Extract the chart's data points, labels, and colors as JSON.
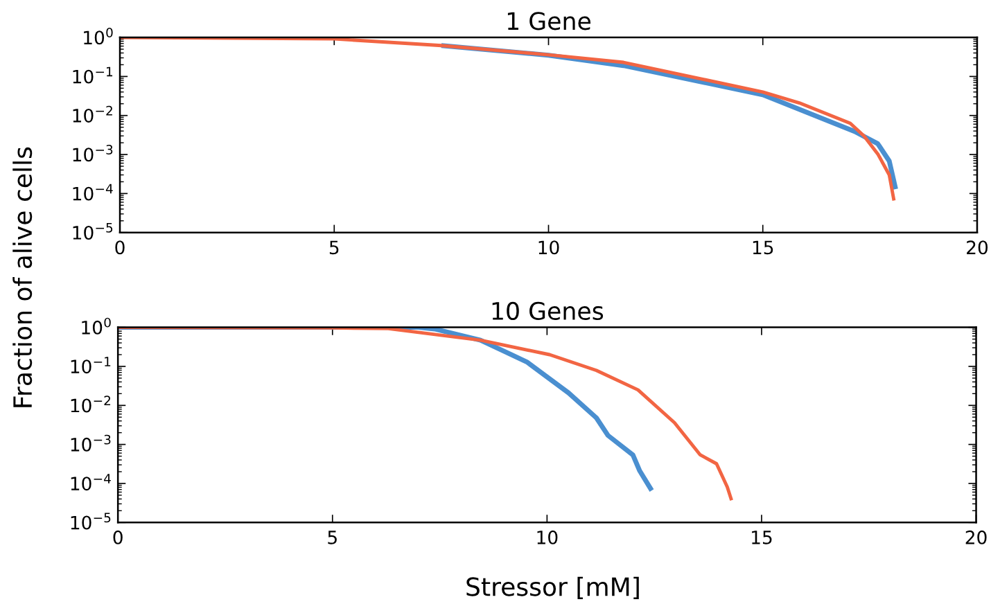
{
  "chart_data": [
    {
      "type": "line",
      "title": "1 Gene",
      "ylabel": "Fraction of alive cells",
      "log": "y",
      "xlim": [
        0,
        20
      ],
      "xticks": [
        0,
        5,
        10,
        15,
        20
      ],
      "ylim": [
        1e-05,
        1
      ],
      "yticks": [
        {
          "value": 1e-05,
          "label": "10$^{−5}$"
        },
        {
          "value": 0.0001,
          "label": "10$^{−4}$"
        },
        {
          "value": 0.001,
          "label": "10$^{−3}$"
        },
        {
          "value": 0.01,
          "label": "10$^{−2}$"
        },
        {
          "value": 0.1,
          "label": "10$^{−1}$"
        },
        {
          "value": 1,
          "label": "10$^{0}$"
        }
      ],
      "grid": false,
      "legend": false,
      "series": [
        {
          "color": "#4a8fd0",
          "x": [
            7.5,
            10,
            11.75,
            15,
            17.14,
            17.68,
            17.95,
            18.1
          ],
          "values": [
            0.62,
            0.35,
            0.19,
            0.034,
            0.0039,
            0.0019,
            0.00068,
            0.00013
          ]
        },
        {
          "color": "#f26543",
          "x": [
            0,
            5,
            7.5,
            10,
            11.75,
            15,
            15.85,
            17.04,
            17.36,
            17.69,
            17.95,
            18.06
          ],
          "values": [
            1,
            0.92,
            0.62,
            0.36,
            0.23,
            0.04,
            0.021,
            0.0063,
            0.003,
            0.001,
            0.0003,
            6.6e-05
          ]
        }
      ]
    },
    {
      "type": "line",
      "title": "10 Genes",
      "xlabel": "Stressor [mM]",
      "log": "y",
      "xlim": [
        0,
        20
      ],
      "xticks": [
        0,
        5,
        10,
        15,
        20
      ],
      "ylim": [
        1e-05,
        1
      ],
      "yticks": [
        {
          "value": 1e-05,
          "label": "10$^{−5}$"
        },
        {
          "value": 0.0001,
          "label": "10$^{−4}$"
        },
        {
          "value": 0.001,
          "label": "10$^{−3}$"
        },
        {
          "value": 0.01,
          "label": "10$^{−2}$"
        },
        {
          "value": 0.1,
          "label": "10$^{−1}$"
        },
        {
          "value": 1,
          "label": "10$^{0}$"
        }
      ],
      "grid": false,
      "legend": false,
      "series": [
        {
          "color": "#4a8fd0",
          "x": [
            0,
            7,
            7.38,
            8.45,
            9.53,
            10.5,
            11.15,
            11.42,
            12.0,
            12.16,
            12.44
          ],
          "values": [
            1,
            1,
            0.91,
            0.47,
            0.13,
            0.021,
            0.0048,
            0.0017,
            0.00054,
            0.00021,
            6.6e-05
          ]
        },
        {
          "color": "#f26543",
          "x": [
            0,
            5,
            6.3,
            8.45,
            10.06,
            11.15,
            12.12,
            12.97,
            13.57,
            13.95,
            14.2,
            14.3
          ],
          "values": [
            1,
            0.97,
            0.93,
            0.47,
            0.2,
            0.079,
            0.025,
            0.0036,
            0.00054,
            0.00032,
            8.1e-05,
            3.7e-05
          ]
        }
      ]
    }
  ]
}
